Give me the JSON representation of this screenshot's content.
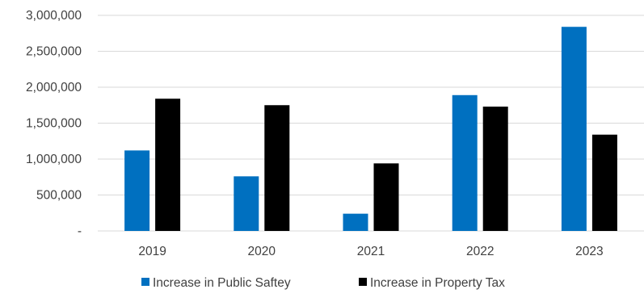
{
  "chart_data": {
    "type": "bar",
    "categories": [
      "2019",
      "2020",
      "2021",
      "2022",
      "2023"
    ],
    "series": [
      {
        "name": "Increase in Public Saftey",
        "values": [
          1120000,
          760000,
          240000,
          1890000,
          2840000
        ],
        "color": "#0070C0"
      },
      {
        "name": "Increase in Property Tax",
        "values": [
          1840000,
          1750000,
          940000,
          1730000,
          1340000
        ],
        "color": "#000000"
      }
    ],
    "ylim": [
      0,
      3000000
    ],
    "y_ticks": [
      0,
      500000,
      1000000,
      1500000,
      2000000,
      2500000,
      3000000
    ],
    "y_tick_labels": [
      "-",
      "500,000",
      "1,000,000",
      "1,500,000",
      "2,000,000",
      "2,500,000",
      "3,000,000"
    ],
    "grid": true,
    "legend_position": "bottom",
    "gridline_color": "#d9d9d9",
    "title": "",
    "xlabel": "",
    "ylabel": ""
  }
}
